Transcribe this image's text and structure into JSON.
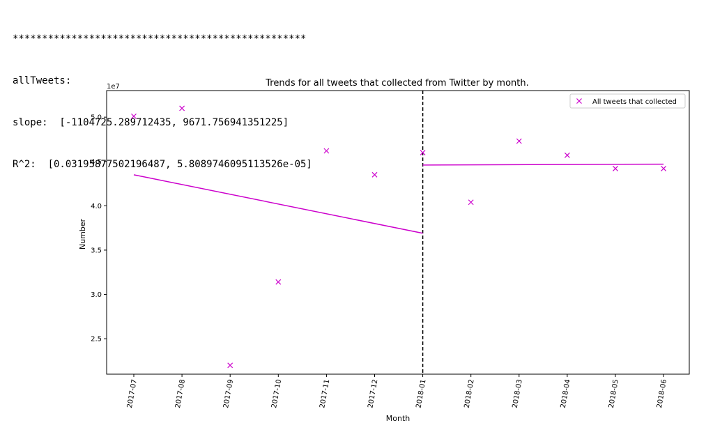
{
  "console": {
    "separator": "**************************************************",
    "name_line": "allTweets:",
    "slope_line": "slope:  [-1104725.289712435, 9671.756941351225]",
    "r2_line": "R^2:  [0.03195877502196487, 5.8089746095113526e-05]"
  },
  "chart_data": {
    "type": "scatter",
    "title": "Trends for all tweets that collected from Twitter by month.",
    "xlabel": "Month",
    "ylabel": "Number",
    "y_offset_label": "1e7",
    "categories": [
      "2017-07",
      "2017-08",
      "2017-09",
      "2017-10",
      "2017-11",
      "2017-12",
      "2018-01",
      "2018-02",
      "2018-03",
      "2018-04",
      "2018-05",
      "2018-06"
    ],
    "yticks": [
      "2.5",
      "3.0",
      "3.5",
      "4.0",
      "4.5",
      "5.0"
    ],
    "ytick_values": [
      2.5,
      3.0,
      3.5,
      4.0,
      4.5,
      5.0
    ],
    "ylim": [
      2.1,
      5.3
    ],
    "series": [
      {
        "name": "All tweets that collected",
        "marker": "x",
        "color": "#cc00cc",
        "values": [
          5.01,
          5.1,
          2.2,
          3.14,
          4.62,
          4.35,
          4.6,
          4.04,
          4.73,
          4.57,
          4.42,
          4.42
        ]
      }
    ],
    "trend_lines": [
      {
        "color": "#cc00cc",
        "x_start": "2017-07",
        "x_end": "2018-01",
        "y_start": 4.35,
        "y_end": 3.69
      },
      {
        "color": "#cc00cc",
        "x_start": "2018-01",
        "x_end": "2018-06",
        "y_start": 4.46,
        "y_end": 4.47
      }
    ],
    "vline": {
      "x": "2018-01",
      "style": "dashed",
      "color": "#000000"
    },
    "legend_position": "upper right",
    "grid": false
  }
}
